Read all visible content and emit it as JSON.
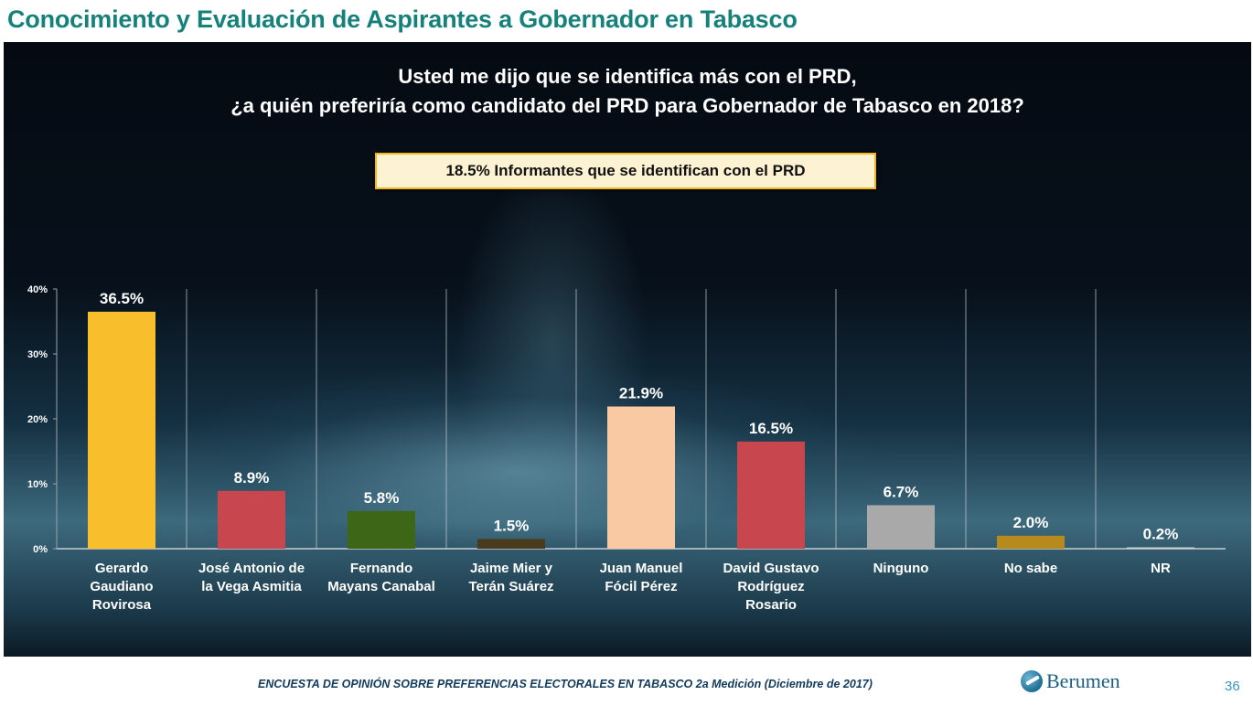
{
  "page": {
    "title": "Conocimiento y Evaluación de Aspirantes a Gobernador en Tabasco",
    "question_line1": "Usted me dijo que se identifica más con el PRD,",
    "question_line2": "¿a quién preferiría como candidato del PRD para Gobernador de Tabasco en 2018?",
    "info_box": "18.5%  Informantes que se identifican con el PRD",
    "footer": "ENCUESTA DE OPINIÓN SOBRE PREFERENCIAS ELECTORALES EN TABASCO 2a Medición (Diciembre de 2017)",
    "brand": "Berumen",
    "page_number": "36"
  },
  "chart_data": {
    "type": "bar",
    "title": "",
    "xlabel": "",
    "ylabel": "",
    "ylim": [
      0,
      40
    ],
    "yticks": [
      0,
      10,
      20,
      30,
      40
    ],
    "ytick_labels": [
      "0%",
      "10%",
      "20%",
      "30%",
      "40%"
    ],
    "categories": [
      [
        "Gerardo",
        "Gaudiano",
        "Rovirosa"
      ],
      [
        "José Antonio de",
        "la Vega Asmitia"
      ],
      [
        "Fernando",
        "Mayans Canabal"
      ],
      [
        "Jaime Mier y",
        "Terán Suárez"
      ],
      [
        "Juan Manuel",
        "Fócil Pérez"
      ],
      [
        "David Gustavo",
        "Rodríguez",
        "Rosario"
      ],
      [
        "Ninguno"
      ],
      [
        "No sabe"
      ],
      [
        "NR"
      ]
    ],
    "values": [
      36.5,
      8.9,
      5.8,
      1.5,
      21.9,
      16.5,
      6.7,
      2.0,
      0.2
    ],
    "value_labels": [
      "36.5%",
      "8.9%",
      "5.8%",
      "1.5%",
      "21.9%",
      "16.5%",
      "6.7%",
      "2.0%",
      "0.2%"
    ],
    "colors": [
      "#f9be2c",
      "#c8474e",
      "#3d6617",
      "#4a3b1c",
      "#f8c9a2",
      "#c8474e",
      "#a9a9a9",
      "#b78a1e",
      "#cfcfcf"
    ],
    "grid": "vertical separators"
  }
}
